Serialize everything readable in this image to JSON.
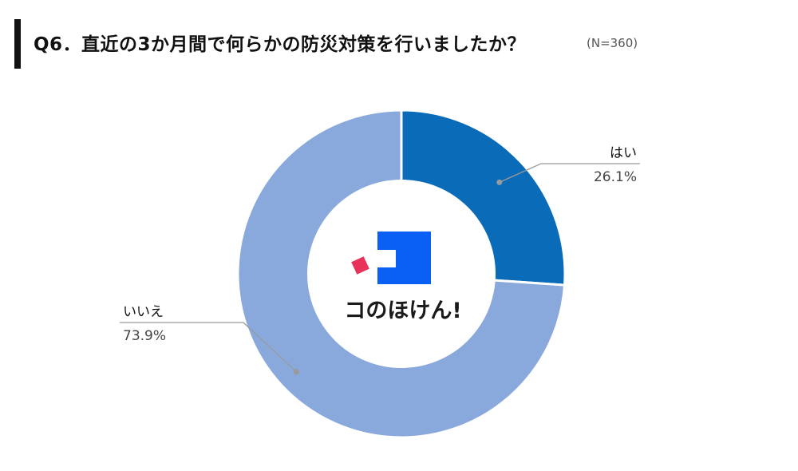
{
  "header": {
    "title": "Q6．直近の3か月間で何らかの防災対策を行いましたか？",
    "sample_size": "(N=360)"
  },
  "brand": {
    "name": "コのほけん!",
    "colors": {
      "square": "#0a5ff5",
      "accent": "#e8325a"
    }
  },
  "chart_data": {
    "type": "pie",
    "variant": "donut",
    "categories": [
      "はい",
      "いいえ"
    ],
    "values": [
      26.1,
      73.9
    ],
    "value_labels": [
      "26.1%",
      "73.9%"
    ],
    "colors": [
      "#0a6bb8",
      "#89a9dc"
    ],
    "unit": "%",
    "start": "top",
    "direction": "clockwise"
  }
}
